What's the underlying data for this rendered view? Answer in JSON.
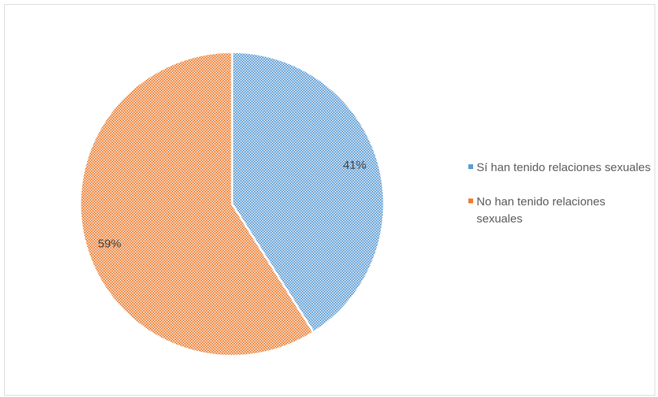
{
  "chart_data": {
    "type": "pie",
    "title": "",
    "labels": [
      "Sí han tenido relaciones sexuales",
      "No han tenido relaciones sexuales"
    ],
    "values": [
      41,
      59
    ],
    "data_labels": [
      "41%",
      "59%"
    ],
    "colors": [
      "#5b9bd5",
      "#ed7d31"
    ],
    "pattern": "crosshatch",
    "legend_position": "right"
  }
}
